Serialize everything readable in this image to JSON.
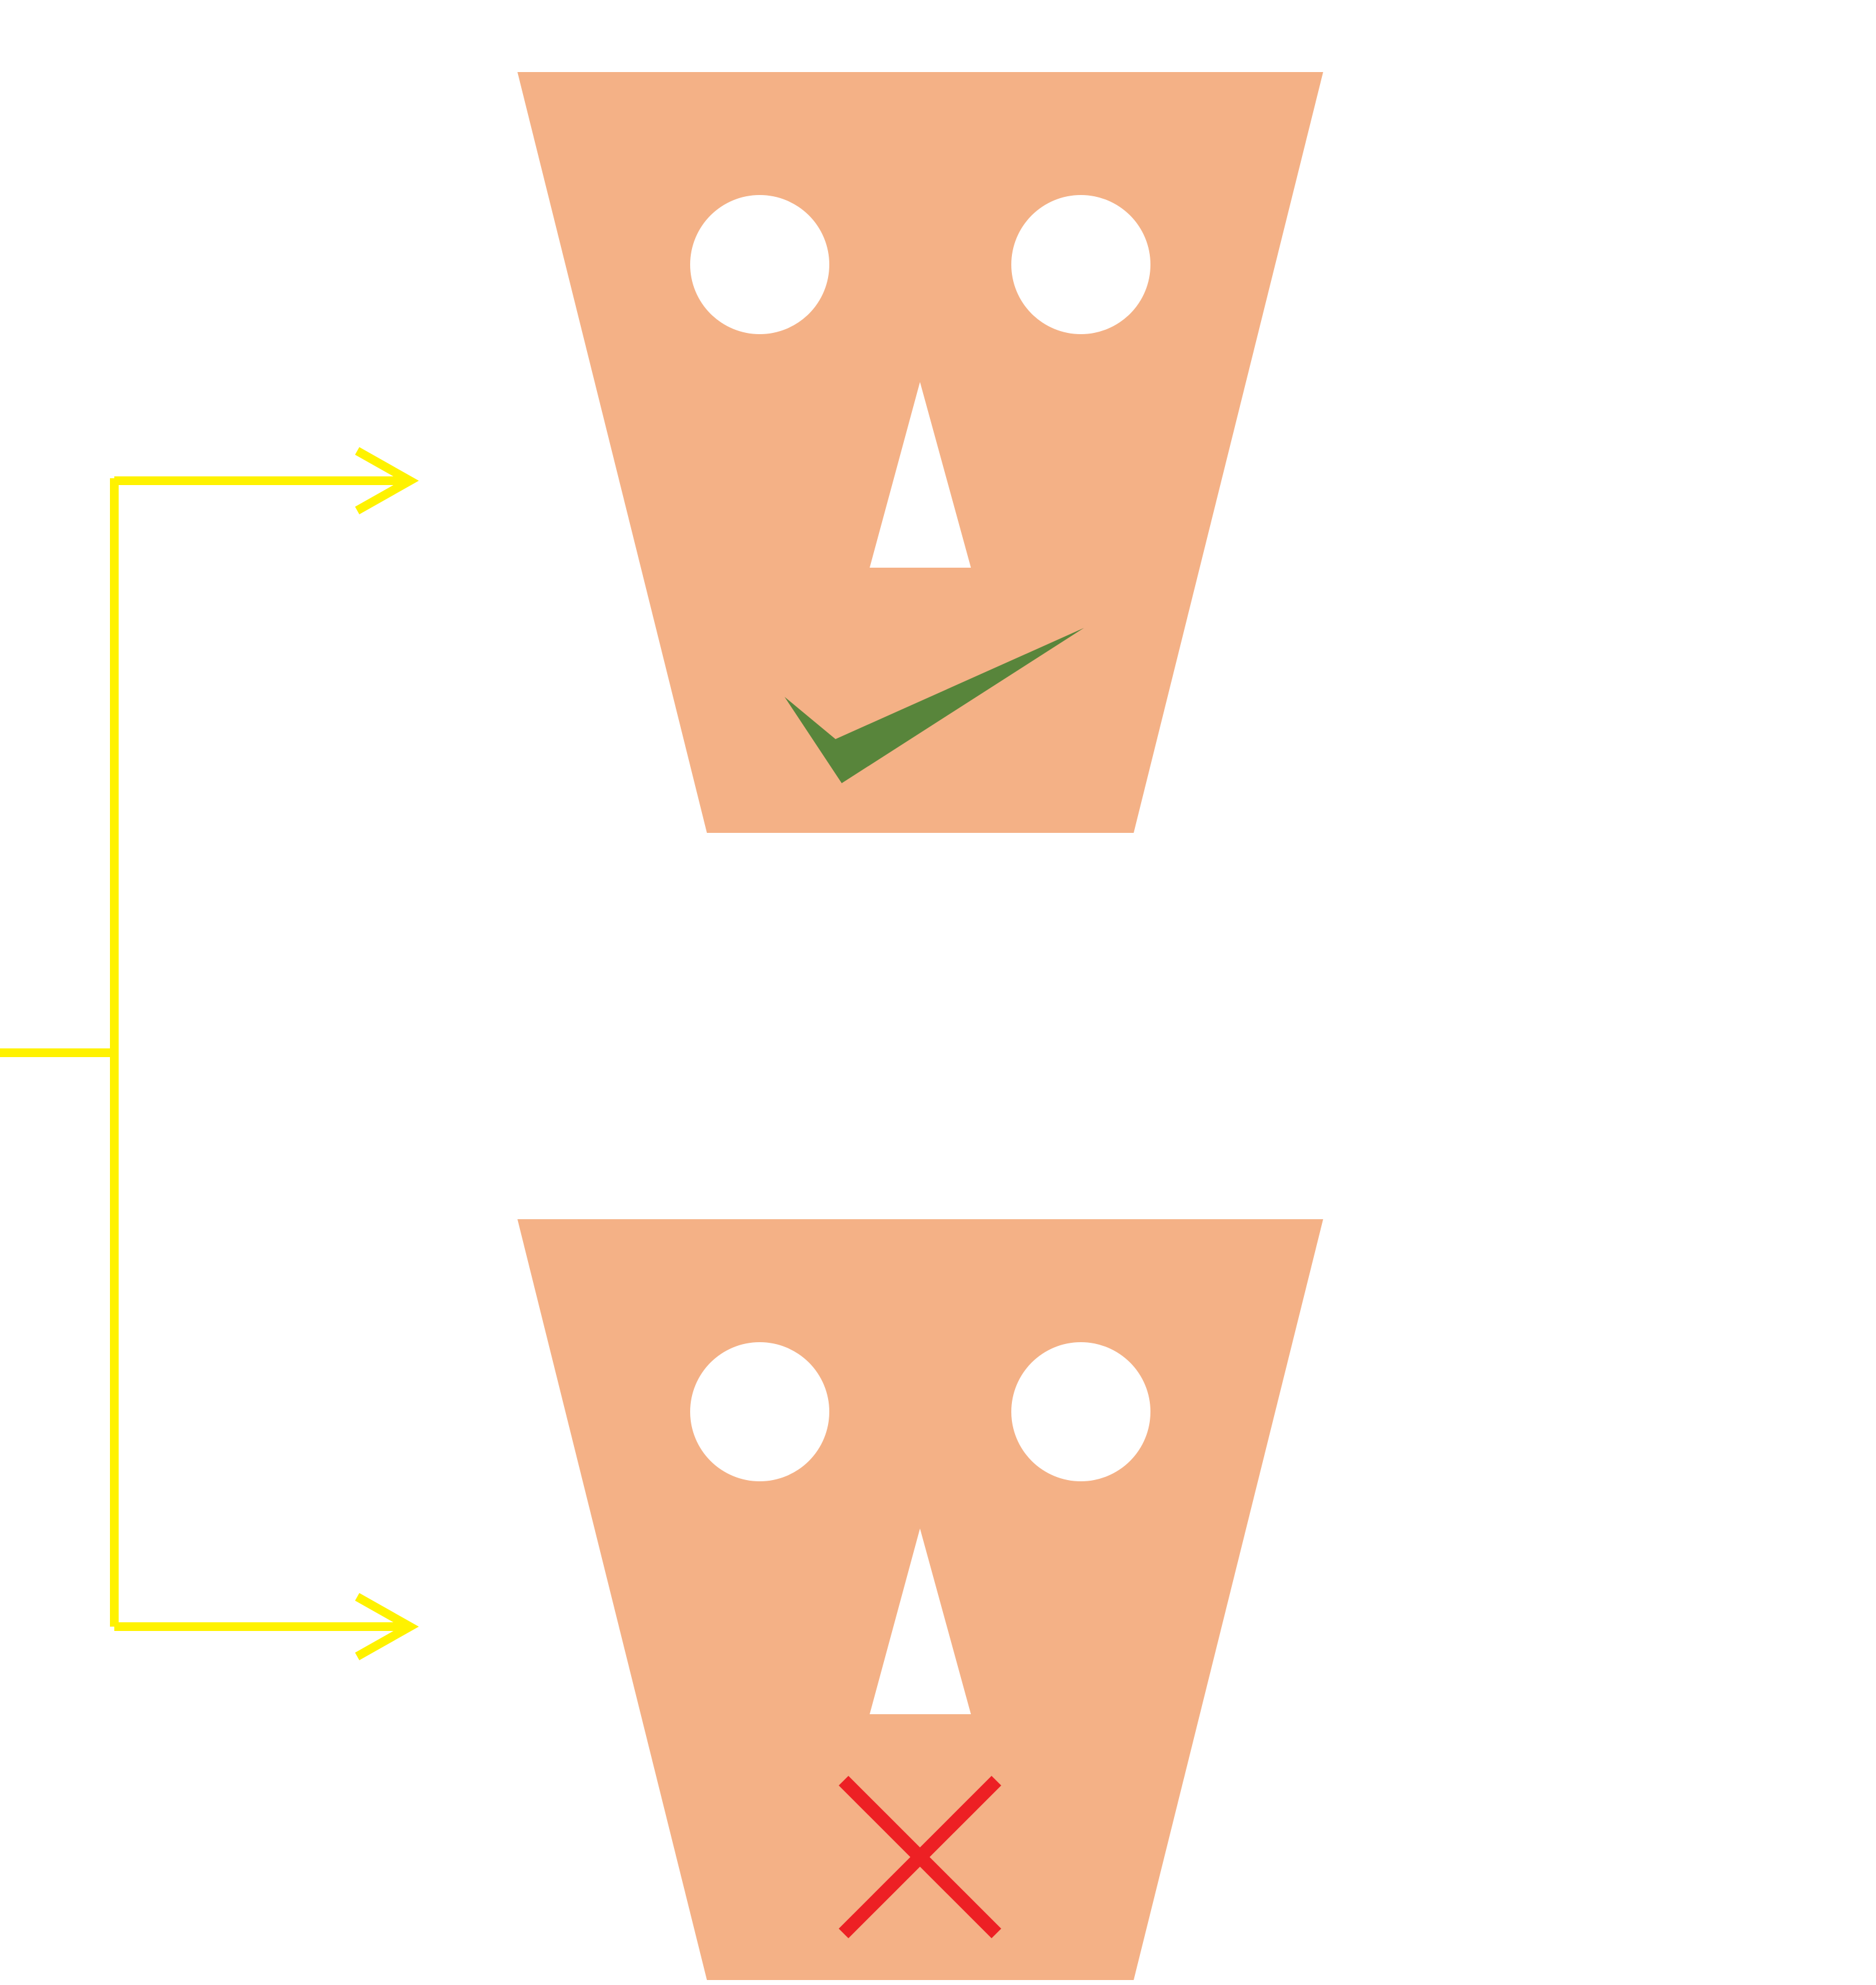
{
  "diagram": {
    "colors": {
      "background": "#ffffff",
      "face": "#f4b186",
      "features": "#ffffff",
      "connector": "#fff200",
      "check": "#58853b",
      "cross": "#ed2024"
    },
    "branches": [
      {
        "face": "face-top",
        "mark": "check-icon",
        "meaning": "approved"
      },
      {
        "face": "face-bottom",
        "mark": "cross-icon",
        "meaning": "rejected"
      }
    ]
  }
}
